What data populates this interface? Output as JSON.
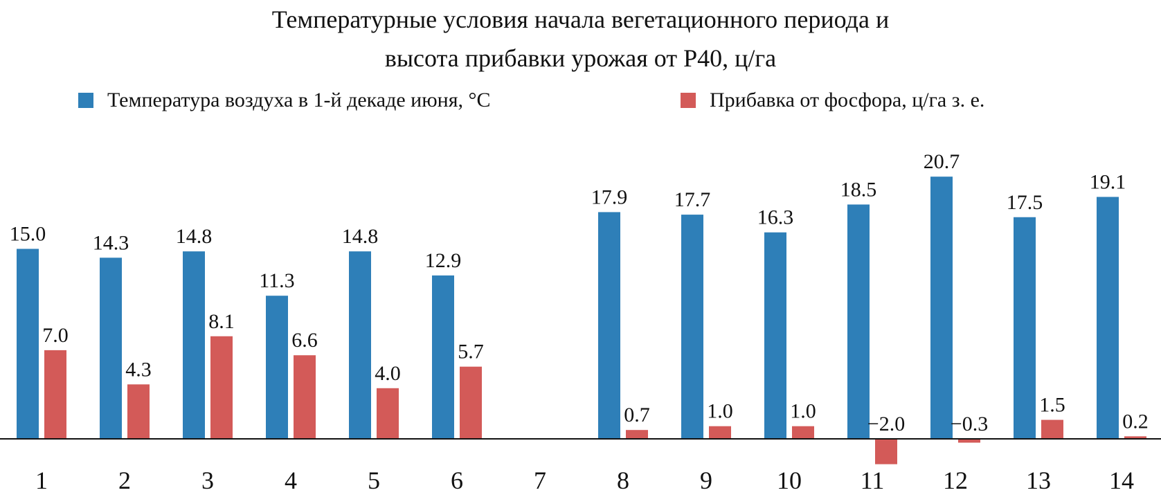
{
  "chart_data": {
    "type": "bar",
    "title_lines": [
      "Температурные условия начала вегетационного периода и",
      "высота прибавки урожая от Р40, ц/га"
    ],
    "categories": [
      "1",
      "2",
      "3",
      "4",
      "5",
      "6",
      "7",
      "8",
      "9",
      "10",
      "11",
      "12",
      "13",
      "14"
    ],
    "series": [
      {
        "name": "Температура воздуха в 1-й декаде июня, °C",
        "color": "#2e7fb8",
        "values": [
          15.0,
          14.3,
          14.8,
          11.3,
          14.8,
          12.9,
          null,
          17.9,
          17.7,
          16.3,
          18.5,
          20.7,
          17.5,
          19.1
        ],
        "labels": [
          "15.0",
          "14.3",
          "14.8",
          "11.3",
          "14.8",
          "12.9",
          "",
          "17.9",
          "17.7",
          "16.3",
          "18.5",
          "20.7",
          "17.5",
          "19.1"
        ]
      },
      {
        "name": "Прибавка от фосфора, ц/га з. е.",
        "color": "#d35a58",
        "values": [
          7.0,
          4.3,
          8.1,
          6.6,
          4.0,
          5.7,
          null,
          0.7,
          1.0,
          1.0,
          -2.0,
          -0.3,
          1.5,
          0.2
        ],
        "labels": [
          "7.0",
          "4.3",
          "8.1",
          "6.6",
          "4.0",
          "5.7",
          "",
          "0.7",
          "1.0",
          "1.0",
          "−2.0",
          "−0.3",
          "1.5",
          "0.2"
        ]
      }
    ],
    "ylim": [
      -2.5,
      22
    ],
    "grid": false,
    "legend_position": "top",
    "xlabel": "",
    "ylabel": ""
  }
}
